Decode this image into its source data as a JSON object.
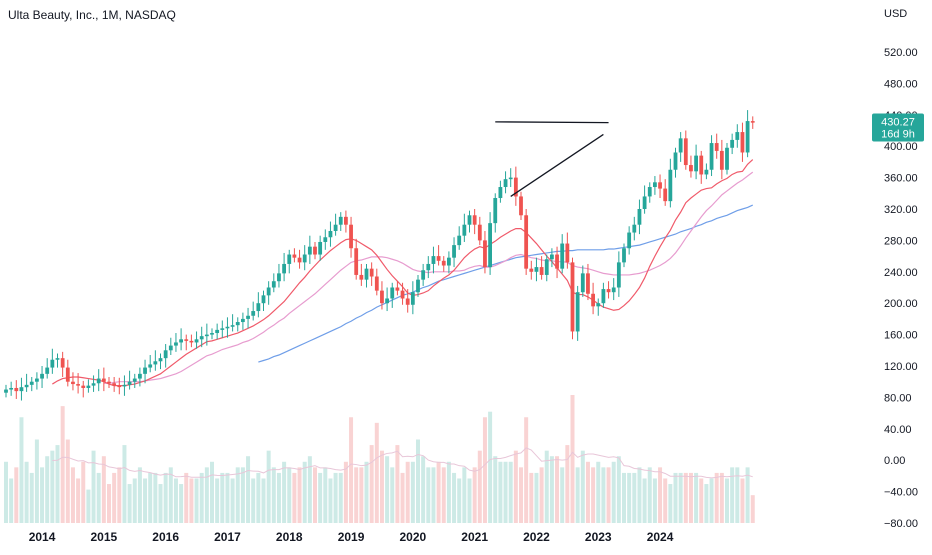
{
  "header": {
    "title": "Ulta Beauty, Inc., 1M, NASDAQ"
  },
  "price_axis": {
    "currency": "USD",
    "ticks": [
      "520.00",
      "480.00",
      "440.00",
      "400.00",
      "360.00",
      "320.00",
      "280.00",
      "240.00",
      "200.00",
      "160.00",
      "120.00",
      "80.00",
      "40.00",
      "0.00",
      "−40.00",
      "−80.00"
    ],
    "last_price": "430.27",
    "countdown": "16d 9h"
  },
  "time_axis": {
    "ticks": [
      "2014",
      "2015",
      "2016",
      "2017",
      "2018",
      "2019",
      "2020",
      "2021",
      "2022",
      "2023",
      "2024"
    ]
  },
  "colors": {
    "up": "#26a69a",
    "down": "#ef5350",
    "ma_fast": "#f05a6a",
    "ma_mid": "#e79ccf",
    "ma_slow": "#6f9ee8",
    "trend": "#131722",
    "vol_ma": "#e8c6d8"
  },
  "chart_data": {
    "type": "candlestick",
    "interval": "1M",
    "x_start": "2013-06",
    "close": [
      90,
      92,
      88,
      93,
      96,
      100,
      104,
      110,
      118,
      128,
      130,
      118,
      100,
      97,
      95,
      92,
      95,
      98,
      104,
      100,
      98,
      95,
      94,
      96,
      100,
      104,
      110,
      118,
      122,
      126,
      130,
      140,
      146,
      150,
      154,
      152,
      150,
      154,
      158,
      160,
      162,
      166,
      168,
      170,
      172,
      176,
      180,
      184,
      190,
      200,
      210,
      220,
      228,
      238,
      250,
      262,
      258,
      252,
      262,
      272,
      262,
      278,
      284,
      292,
      300,
      310,
      300,
      270,
      236,
      230,
      244,
      234,
      216,
      200,
      206,
      220,
      216,
      206,
      198,
      214,
      230,
      242,
      250,
      260,
      254,
      248,
      258,
      274,
      286,
      300,
      312,
      300,
      280,
      246,
      302,
      334,
      348,
      358,
      360,
      336,
      312,
      244,
      240,
      246,
      236,
      256,
      262,
      244,
      276,
      252,
      164,
      214,
      238,
      212,
      196,
      200,
      218,
      214,
      220,
      252,
      270,
      290,
      300,
      320,
      336,
      348,
      354,
      346,
      330,
      370,
      392,
      410,
      376,
      368,
      388,
      364,
      370,
      404,
      394,
      370,
      398,
      408,
      418,
      392,
      432,
      430
    ],
    "open": [
      86,
      90,
      92,
      88,
      93,
      96,
      100,
      104,
      110,
      118,
      128,
      130,
      118,
      100,
      97,
      95,
      92,
      95,
      98,
      104,
      100,
      98,
      95,
      94,
      96,
      100,
      104,
      110,
      118,
      122,
      126,
      130,
      140,
      146,
      150,
      154,
      152,
      150,
      154,
      158,
      160,
      162,
      166,
      168,
      170,
      172,
      176,
      180,
      184,
      190,
      200,
      210,
      220,
      228,
      238,
      250,
      262,
      258,
      252,
      262,
      272,
      262,
      278,
      284,
      292,
      300,
      310,
      300,
      270,
      236,
      230,
      244,
      234,
      216,
      200,
      206,
      220,
      216,
      206,
      198,
      214,
      230,
      242,
      250,
      260,
      254,
      248,
      258,
      274,
      286,
      300,
      312,
      300,
      280,
      246,
      302,
      334,
      348,
      358,
      360,
      336,
      312,
      244,
      240,
      246,
      236,
      256,
      262,
      244,
      276,
      252,
      164,
      214,
      238,
      212,
      196,
      200,
      218,
      214,
      220,
      252,
      270,
      290,
      300,
      320,
      336,
      348,
      354,
      346,
      330,
      370,
      392,
      410,
      376,
      368,
      388,
      364,
      370,
      404,
      394,
      370,
      398,
      408,
      418,
      392,
      432
    ],
    "ma_fast": {
      "period": 10,
      "values": [
        null,
        null,
        null,
        null,
        null,
        null,
        null,
        null,
        null,
        97,
        101,
        104,
        105,
        106,
        106,
        105,
        104,
        103,
        102,
        100,
        97,
        95,
        95,
        95,
        96,
        97,
        99,
        101,
        104,
        107,
        110,
        115,
        120,
        125,
        130,
        135,
        139,
        143,
        147,
        151,
        152,
        154,
        156,
        158,
        160,
        162,
        165,
        168,
        171,
        175,
        179,
        184,
        190,
        196,
        202,
        210,
        218,
        226,
        233,
        241,
        248,
        255,
        261,
        267,
        272,
        277,
        281,
        282,
        280,
        276,
        272,
        268,
        261,
        252,
        243,
        235,
        228,
        221,
        213,
        210,
        211,
        213,
        216,
        222,
        227,
        232,
        236,
        242,
        250,
        258,
        264,
        269,
        272,
        270,
        275,
        279,
        284,
        288,
        292,
        295,
        295,
        290,
        283,
        276,
        268,
        260,
        253,
        245,
        237,
        229,
        214,
        211,
        211,
        208,
        204,
        199,
        195,
        193,
        191,
        192,
        197,
        203,
        211,
        220,
        232,
        247,
        260,
        272,
        283,
        293,
        306,
        316,
        328,
        334,
        339,
        344,
        346,
        347,
        352,
        356,
        359,
        364,
        367,
        368,
        377,
        383
      ]
    },
    "ma_mid": {
      "period": 20,
      "values": [
        null,
        null,
        null,
        null,
        null,
        null,
        null,
        null,
        null,
        null,
        null,
        null,
        null,
        null,
        null,
        null,
        null,
        null,
        null,
        98,
        98,
        99,
        100,
        100,
        100,
        100,
        100,
        101,
        102,
        103,
        104,
        106,
        108,
        110,
        113,
        117,
        121,
        125,
        129,
        133,
        135,
        138,
        141,
        143,
        145,
        147,
        150,
        152,
        155,
        159,
        163,
        168,
        172,
        177,
        181,
        187,
        192,
        197,
        202,
        207,
        212,
        218,
        224,
        230,
        236,
        242,
        247,
        252,
        254,
        255,
        257,
        259,
        259,
        259,
        258,
        256,
        254,
        251,
        247,
        243,
        241,
        240,
        239,
        240,
        240,
        240,
        240,
        241,
        241,
        242,
        245,
        247,
        248,
        246,
        246,
        248,
        251,
        254,
        258,
        261,
        262,
        260,
        258,
        257,
        255,
        254,
        254,
        253,
        253,
        252,
        248,
        246,
        245,
        244,
        242,
        240,
        238,
        237,
        236,
        236,
        236,
        236,
        237,
        238,
        240,
        242,
        245,
        248,
        252,
        257,
        264,
        273,
        283,
        292,
        301,
        310,
        318,
        324,
        331,
        338,
        343,
        348,
        353,
        357,
        362,
        367
      ]
    },
    "ma_slow": {
      "period": 50,
      "values": [
        null,
        null,
        null,
        null,
        null,
        null,
        null,
        null,
        null,
        null,
        null,
        null,
        null,
        null,
        null,
        null,
        null,
        null,
        null,
        null,
        null,
        null,
        null,
        null,
        null,
        null,
        null,
        null,
        null,
        null,
        null,
        null,
        null,
        null,
        null,
        null,
        null,
        null,
        null,
        null,
        null,
        null,
        null,
        null,
        null,
        null,
        null,
        null,
        null,
        125,
        127,
        129,
        132,
        134,
        137,
        140,
        143,
        146,
        149,
        152,
        155,
        158,
        161,
        164,
        167,
        170,
        174,
        177,
        181,
        184,
        188,
        191,
        195,
        198,
        201,
        204,
        207,
        210,
        212,
        214,
        217,
        220,
        222,
        225,
        228,
        230,
        232,
        234,
        236,
        238,
        240,
        242,
        244,
        246,
        248,
        250,
        252,
        254,
        256,
        258,
        259,
        260,
        261,
        262,
        263,
        264,
        265,
        266,
        266,
        267,
        267,
        268,
        268,
        268,
        268,
        268,
        268,
        269,
        269,
        270,
        271,
        272,
        273,
        274,
        276,
        278,
        280,
        282,
        284,
        286,
        288,
        291,
        293,
        295,
        298,
        300,
        303,
        305,
        308,
        310,
        312,
        315,
        318,
        320,
        322,
        325
      ]
    },
    "volume": [
      44,
      32,
      40,
      76,
      44,
      36,
      60,
      40,
      48,
      52,
      56,
      84,
      60,
      40,
      32,
      44,
      24,
      52,
      36,
      48,
      28,
      36,
      40,
      56,
      28,
      32,
      40,
      32,
      36,
      36,
      28,
      36,
      40,
      32,
      28,
      36,
      32,
      32,
      36,
      40,
      44,
      32,
      36,
      36,
      32,
      40,
      40,
      48,
      32,
      36,
      32,
      52,
      40,
      36,
      44,
      40,
      36,
      40,
      44,
      48,
      40,
      36,
      40,
      32,
      36,
      36,
      44,
      76,
      40,
      40,
      44,
      56,
      72,
      52,
      48,
      40,
      56,
      36,
      44,
      44,
      60,
      48,
      40,
      40,
      44,
      40,
      44,
      36,
      32,
      40,
      32,
      40,
      52,
      76,
      80,
      48,
      44,
      44,
      44,
      52,
      40,
      76,
      36,
      36,
      40,
      52,
      48,
      48,
      40,
      56,
      92,
      40,
      52,
      44,
      40,
      44,
      40,
      40,
      44,
      48,
      36,
      36,
      36,
      40,
      32,
      40,
      32,
      40,
      32,
      28,
      36,
      36,
      36,
      36,
      36,
      32,
      28,
      32,
      36,
      36,
      32,
      40,
      40,
      32,
      40,
      20
    ],
    "volume_ma": [
      null,
      null,
      null,
      null,
      null,
      null,
      null,
      null,
      null,
      44.9,
      45.1,
      47.3,
      47.2,
      45.8,
      44.6,
      44.8,
      43.2,
      43.4,
      42.4,
      42.1,
      40.3,
      39.7,
      38.9,
      39.9,
      37.8,
      37.1,
      37.7,
      36.8,
      36.2,
      35.1,
      34.4,
      35.1,
      35.0,
      33.2,
      33.3,
      33.7,
      32.9,
      32.9,
      32.9,
      33.0,
      34.6,
      34.2,
      34.1,
      34.5,
      34.9,
      35.3,
      36.1,
      37.7,
      37.3,
      37.2,
      36.0,
      38.0,
      38.4,
      38.4,
      39.6,
      39.6,
      39.2,
      38.4,
      39.6,
      40.4,
      41.2,
      39.6,
      39.6,
      39.2,
      38.4,
      38.0,
      38.8,
      42.4,
      42.0,
      41.2,
      41.6,
      43.6,
      46.8,
      48.8,
      50.0,
      50.4,
      51.6,
      47.6,
      48.0,
      47.6,
      49.2,
      48.4,
      45.2,
      44.0,
      43.6,
      43.6,
      42.4,
      42.4,
      41.2,
      40.8,
      38.0,
      37.2,
      38.4,
      42.0,
      45.6,
      46.4,
      46.4,
      47.2,
      48.4,
      49.6,
      50.4,
      54.0,
      52.4,
      48.4,
      44.4,
      44.8,
      45.2,
      45.6,
      45.2,
      45.6,
      50.8,
      47.2,
      48.8,
      49.6,
      49.6,
      48.8,
      48.0,
      47.2,
      47.6,
      46.8,
      41.2,
      40.8,
      39.2,
      38.8,
      38.0,
      37.6,
      36.8,
      36.8,
      35.6,
      33.6,
      33.6,
      33.6,
      33.6,
      33.2,
      33.6,
      33.6,
      32.8,
      32.4,
      32.8,
      33.6,
      33.2,
      33.6,
      34.0,
      33.6,
      34.4,
      33.2
    ],
    "trendlines": [
      {
        "name": "resistance",
        "from": [
          "2021-05",
          431
        ],
        "to": [
          "2023-03",
          430
        ]
      },
      {
        "name": "support",
        "from": [
          "2021-08",
          336
        ],
        "to": [
          "2023-02",
          415
        ]
      }
    ],
    "y_range": [
      -85,
      560
    ]
  }
}
